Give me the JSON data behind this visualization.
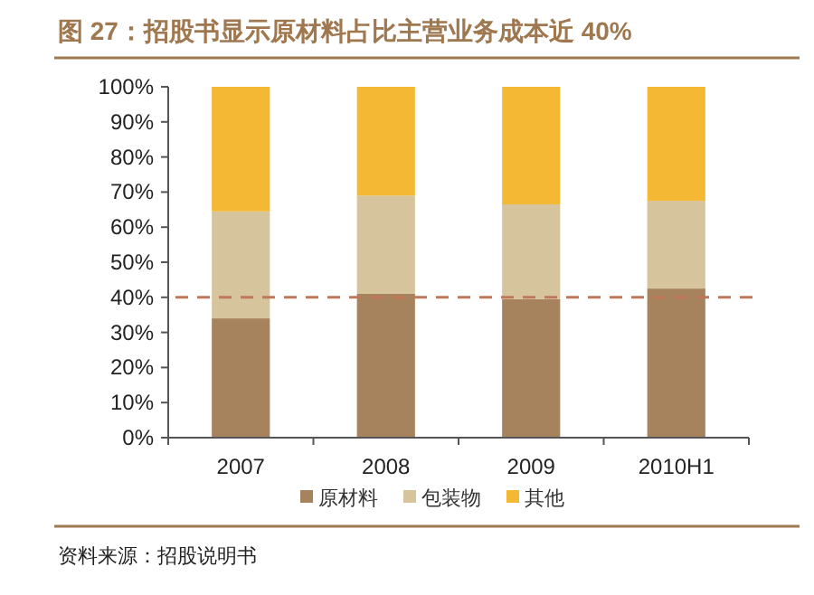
{
  "chart_data": {
    "type": "bar",
    "stacked": true,
    "title": "图 27：招股书显示原材料占比主营业务成本近 40%",
    "categories": [
      "2007",
      "2008",
      "2009",
      "2010H1"
    ],
    "series": [
      {
        "name": "原材料",
        "color": "#a6835c",
        "values": [
          34,
          41,
          39.5,
          42.5
        ]
      },
      {
        "name": "包装物",
        "color": "#d5c49c",
        "values": [
          30.5,
          28,
          27,
          25
        ]
      },
      {
        "name": "其他",
        "color": "#f4b834",
        "values": [
          35.5,
          31,
          33.5,
          32.5
        ]
      }
    ],
    "ylim": [
      0,
      100
    ],
    "yticks": [
      {
        "value": 0,
        "label": "0%"
      },
      {
        "value": 10,
        "label": "10%"
      },
      {
        "value": 20,
        "label": "20%"
      },
      {
        "value": 30,
        "label": "30%"
      },
      {
        "value": 40,
        "label": "40%"
      },
      {
        "value": 50,
        "label": "50%"
      },
      {
        "value": 60,
        "label": "60%"
      },
      {
        "value": 70,
        "label": "70%"
      },
      {
        "value": 80,
        "label": "80%"
      },
      {
        "value": 90,
        "label": "90%"
      },
      {
        "value": 100,
        "label": "100%"
      }
    ],
    "ref_lines": [
      {
        "axis": "y",
        "value": 40,
        "color": "#c0785a",
        "line_style": "dashed"
      }
    ],
    "legend": "bottom",
    "grid": false,
    "annotations": [
      "资料来源：招股说明书"
    ]
  }
}
